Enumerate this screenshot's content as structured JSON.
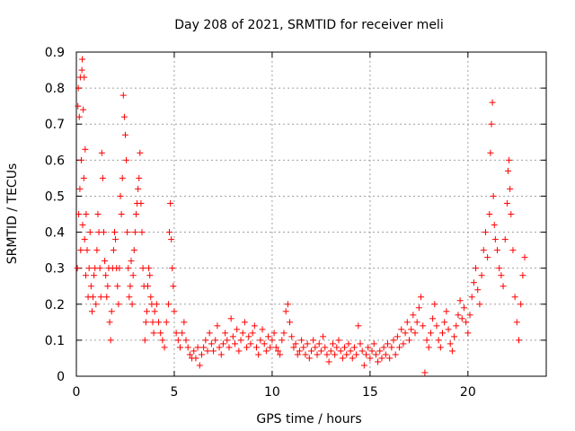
{
  "chart_data": {
    "type": "scatter",
    "title": "Day 208 of 2021, SRMTID for receiver meli",
    "xlabel": "GPS time / hours",
    "ylabel": "SRMTID / TECUs",
    "xlim": [
      0,
      24
    ],
    "ylim": [
      0,
      0.9
    ],
    "xticks": [
      0,
      5,
      10,
      15,
      20
    ],
    "yticks": [
      0,
      0.1,
      0.2,
      0.3,
      0.4,
      0.5,
      0.6,
      0.7,
      0.8,
      0.9
    ],
    "xtick_labels": [
      "0",
      "5",
      "10",
      "15",
      "20"
    ],
    "ytick_labels": [
      "0",
      "0.1",
      "0.2",
      "0.3",
      "0.4",
      "0.5",
      "0.6",
      "0.7",
      "0.8",
      "0.9"
    ],
    "grid": true,
    "marker": "+",
    "color": "#ff0000",
    "series": [
      {
        "name": "SRMTID",
        "points": [
          [
            0.05,
            0.3
          ],
          [
            0.08,
            0.75
          ],
          [
            0.1,
            0.8
          ],
          [
            0.12,
            0.45
          ],
          [
            0.15,
            0.72
          ],
          [
            0.18,
            0.52
          ],
          [
            0.2,
            0.83
          ],
          [
            0.22,
            0.35
          ],
          [
            0.25,
            0.6
          ],
          [
            0.28,
            0.85
          ],
          [
            0.3,
            0.88
          ],
          [
            0.32,
            0.42
          ],
          [
            0.35,
            0.74
          ],
          [
            0.38,
            0.55
          ],
          [
            0.4,
            0.83
          ],
          [
            0.42,
            0.38
          ],
          [
            0.45,
            0.63
          ],
          [
            0.48,
            0.28
          ],
          [
            0.5,
            0.45
          ],
          [
            0.55,
            0.35
          ],
          [
            0.6,
            0.22
          ],
          [
            0.65,
            0.3
          ],
          [
            0.7,
            0.4
          ],
          [
            0.75,
            0.25
          ],
          [
            0.8,
            0.18
          ],
          [
            0.85,
            0.22
          ],
          [
            0.9,
            0.28
          ],
          [
            0.95,
            0.3
          ],
          [
            1.0,
            0.2
          ],
          [
            1.05,
            0.35
          ],
          [
            1.1,
            0.45
          ],
          [
            1.15,
            0.4
          ],
          [
            1.2,
            0.3
          ],
          [
            1.25,
            0.22
          ],
          [
            1.3,
            0.62
          ],
          [
            1.35,
            0.55
          ],
          [
            1.4,
            0.4
          ],
          [
            1.45,
            0.32
          ],
          [
            1.5,
            0.28
          ],
          [
            1.55,
            0.22
          ],
          [
            1.6,
            0.25
          ],
          [
            1.65,
            0.3
          ],
          [
            1.7,
            0.15
          ],
          [
            1.75,
            0.1
          ],
          [
            1.8,
            0.18
          ],
          [
            1.85,
            0.3
          ],
          [
            1.9,
            0.35
          ],
          [
            1.95,
            0.4
          ],
          [
            2.0,
            0.38
          ],
          [
            2.05,
            0.3
          ],
          [
            2.1,
            0.25
          ],
          [
            2.15,
            0.2
          ],
          [
            2.2,
            0.3
          ],
          [
            2.25,
            0.5
          ],
          [
            2.3,
            0.45
          ],
          [
            2.35,
            0.55
          ],
          [
            2.4,
            0.78
          ],
          [
            2.45,
            0.72
          ],
          [
            2.5,
            0.67
          ],
          [
            2.55,
            0.6
          ],
          [
            2.6,
            0.4
          ],
          [
            2.65,
            0.3
          ],
          [
            2.7,
            0.22
          ],
          [
            2.75,
            0.25
          ],
          [
            2.8,
            0.32
          ],
          [
            2.85,
            0.2
          ],
          [
            2.9,
            0.28
          ],
          [
            2.95,
            0.35
          ],
          [
            3.0,
            0.4
          ],
          [
            3.05,
            0.45
          ],
          [
            3.1,
            0.48
          ],
          [
            3.15,
            0.52
          ],
          [
            3.2,
            0.55
          ],
          [
            3.25,
            0.62
          ],
          [
            3.3,
            0.48
          ],
          [
            3.35,
            0.4
          ],
          [
            3.4,
            0.3
          ],
          [
            3.45,
            0.25
          ],
          [
            3.5,
            0.1
          ],
          [
            3.55,
            0.15
          ],
          [
            3.6,
            0.18
          ],
          [
            3.65,
            0.25
          ],
          [
            3.7,
            0.3
          ],
          [
            3.75,
            0.28
          ],
          [
            3.8,
            0.22
          ],
          [
            3.85,
            0.2
          ],
          [
            3.9,
            0.15
          ],
          [
            3.95,
            0.12
          ],
          [
            4.0,
            0.18
          ],
          [
            4.1,
            0.2
          ],
          [
            4.2,
            0.15
          ],
          [
            4.3,
            0.12
          ],
          [
            4.4,
            0.1
          ],
          [
            4.5,
            0.08
          ],
          [
            4.6,
            0.15
          ],
          [
            4.7,
            0.2
          ],
          [
            4.75,
            0.4
          ],
          [
            4.8,
            0.48
          ],
          [
            4.85,
            0.38
          ],
          [
            4.9,
            0.3
          ],
          [
            4.95,
            0.25
          ],
          [
            5.0,
            0.18
          ],
          [
            5.1,
            0.12
          ],
          [
            5.2,
            0.1
          ],
          [
            5.3,
            0.08
          ],
          [
            5.4,
            0.12
          ],
          [
            5.5,
            0.15
          ],
          [
            5.6,
            0.1
          ],
          [
            5.7,
            0.08
          ],
          [
            5.8,
            0.06
          ],
          [
            5.9,
            0.05
          ],
          [
            6.0,
            0.07
          ],
          [
            6.1,
            0.05
          ],
          [
            6.2,
            0.08
          ],
          [
            6.3,
            0.03
          ],
          [
            6.4,
            0.06
          ],
          [
            6.5,
            0.08
          ],
          [
            6.6,
            0.1
          ],
          [
            6.7,
            0.07
          ],
          [
            6.8,
            0.12
          ],
          [
            6.9,
            0.09
          ],
          [
            7.0,
            0.07
          ],
          [
            7.1,
            0.1
          ],
          [
            7.2,
            0.14
          ],
          [
            7.3,
            0.08
          ],
          [
            7.4,
            0.06
          ],
          [
            7.5,
            0.09
          ],
          [
            7.6,
            0.12
          ],
          [
            7.7,
            0.1
          ],
          [
            7.8,
            0.08
          ],
          [
            7.9,
            0.16
          ],
          [
            8.0,
            0.11
          ],
          [
            8.1,
            0.09
          ],
          [
            8.2,
            0.13
          ],
          [
            8.3,
            0.07
          ],
          [
            8.4,
            0.1
          ],
          [
            8.5,
            0.12
          ],
          [
            8.6,
            0.15
          ],
          [
            8.7,
            0.08
          ],
          [
            8.8,
            0.11
          ],
          [
            8.9,
            0.09
          ],
          [
            9.0,
            0.12
          ],
          [
            9.1,
            0.14
          ],
          [
            9.2,
            0.08
          ],
          [
            9.3,
            0.06
          ],
          [
            9.4,
            0.1
          ],
          [
            9.5,
            0.13
          ],
          [
            9.6,
            0.09
          ],
          [
            9.7,
            0.07
          ],
          [
            9.8,
            0.11
          ],
          [
            9.9,
            0.08
          ],
          [
            10.0,
            0.1
          ],
          [
            10.1,
            0.12
          ],
          [
            10.2,
            0.08
          ],
          [
            10.3,
            0.07
          ],
          [
            10.4,
            0.06
          ],
          [
            10.5,
            0.1
          ],
          [
            10.6,
            0.12
          ],
          [
            10.7,
            0.18
          ],
          [
            10.8,
            0.2
          ],
          [
            10.9,
            0.15
          ],
          [
            11.0,
            0.11
          ],
          [
            11.1,
            0.08
          ],
          [
            11.2,
            0.09
          ],
          [
            11.3,
            0.06
          ],
          [
            11.4,
            0.07
          ],
          [
            11.5,
            0.1
          ],
          [
            11.6,
            0.08
          ],
          [
            11.7,
            0.06
          ],
          [
            11.8,
            0.09
          ],
          [
            11.9,
            0.05
          ],
          [
            12.0,
            0.07
          ],
          [
            12.1,
            0.1
          ],
          [
            12.2,
            0.08
          ],
          [
            12.3,
            0.06
          ],
          [
            12.4,
            0.09
          ],
          [
            12.5,
            0.07
          ],
          [
            12.6,
            0.11
          ],
          [
            12.7,
            0.08
          ],
          [
            12.8,
            0.06
          ],
          [
            12.9,
            0.04
          ],
          [
            13.0,
            0.07
          ],
          [
            13.1,
            0.09
          ],
          [
            13.2,
            0.06
          ],
          [
            13.3,
            0.08
          ],
          [
            13.4,
            0.1
          ],
          [
            13.5,
            0.07
          ],
          [
            13.6,
            0.05
          ],
          [
            13.7,
            0.08
          ],
          [
            13.8,
            0.06
          ],
          [
            13.9,
            0.09
          ],
          [
            14.0,
            0.07
          ],
          [
            14.1,
            0.05
          ],
          [
            14.2,
            0.08
          ],
          [
            14.3,
            0.06
          ],
          [
            14.4,
            0.14
          ],
          [
            14.5,
            0.09
          ],
          [
            14.6,
            0.07
          ],
          [
            14.7,
            0.03
          ],
          [
            14.8,
            0.06
          ],
          [
            14.9,
            0.08
          ],
          [
            15.0,
            0.05
          ],
          [
            15.1,
            0.07
          ],
          [
            15.2,
            0.09
          ],
          [
            15.3,
            0.06
          ],
          [
            15.4,
            0.04
          ],
          [
            15.5,
            0.07
          ],
          [
            15.6,
            0.05
          ],
          [
            15.7,
            0.08
          ],
          [
            15.8,
            0.06
          ],
          [
            15.9,
            0.09
          ],
          [
            16.0,
            0.05
          ],
          [
            16.1,
            0.08
          ],
          [
            16.2,
            0.1
          ],
          [
            16.3,
            0.06
          ],
          [
            16.4,
            0.11
          ],
          [
            16.5,
            0.08
          ],
          [
            16.6,
            0.13
          ],
          [
            16.7,
            0.09
          ],
          [
            16.8,
            0.12
          ],
          [
            16.9,
            0.15
          ],
          [
            17.0,
            0.1
          ],
          [
            17.1,
            0.13
          ],
          [
            17.2,
            0.17
          ],
          [
            17.3,
            0.12
          ],
          [
            17.4,
            0.15
          ],
          [
            17.5,
            0.19
          ],
          [
            17.6,
            0.22
          ],
          [
            17.7,
            0.14
          ],
          [
            17.8,
            0.01
          ],
          [
            17.9,
            0.1
          ],
          [
            18.0,
            0.08
          ],
          [
            18.1,
            0.12
          ],
          [
            18.2,
            0.16
          ],
          [
            18.3,
            0.2
          ],
          [
            18.4,
            0.14
          ],
          [
            18.5,
            0.1
          ],
          [
            18.6,
            0.08
          ],
          [
            18.7,
            0.12
          ],
          [
            18.8,
            0.15
          ],
          [
            18.9,
            0.18
          ],
          [
            19.0,
            0.13
          ],
          [
            19.1,
            0.09
          ],
          [
            19.2,
            0.07
          ],
          [
            19.3,
            0.11
          ],
          [
            19.4,
            0.14
          ],
          [
            19.5,
            0.17
          ],
          [
            19.6,
            0.21
          ],
          [
            19.7,
            0.16
          ],
          [
            19.8,
            0.19
          ],
          [
            19.9,
            0.15
          ],
          [
            20.0,
            0.12
          ],
          [
            20.1,
            0.17
          ],
          [
            20.2,
            0.22
          ],
          [
            20.3,
            0.26
          ],
          [
            20.4,
            0.3
          ],
          [
            20.5,
            0.24
          ],
          [
            20.6,
            0.2
          ],
          [
            20.7,
            0.28
          ],
          [
            20.8,
            0.35
          ],
          [
            20.9,
            0.4
          ],
          [
            21.0,
            0.33
          ],
          [
            21.1,
            0.45
          ],
          [
            21.15,
            0.62
          ],
          [
            21.2,
            0.7
          ],
          [
            21.25,
            0.76
          ],
          [
            21.3,
            0.5
          ],
          [
            21.35,
            0.42
          ],
          [
            21.4,
            0.38
          ],
          [
            21.5,
            0.35
          ],
          [
            21.6,
            0.3
          ],
          [
            21.7,
            0.28
          ],
          [
            21.8,
            0.25
          ],
          [
            21.9,
            0.38
          ],
          [
            22.0,
            0.48
          ],
          [
            22.05,
            0.57
          ],
          [
            22.1,
            0.6
          ],
          [
            22.15,
            0.52
          ],
          [
            22.2,
            0.45
          ],
          [
            22.3,
            0.35
          ],
          [
            22.4,
            0.22
          ],
          [
            22.5,
            0.15
          ],
          [
            22.6,
            0.1
          ],
          [
            22.7,
            0.2
          ],
          [
            22.8,
            0.28
          ],
          [
            22.9,
            0.33
          ]
        ]
      }
    ]
  }
}
